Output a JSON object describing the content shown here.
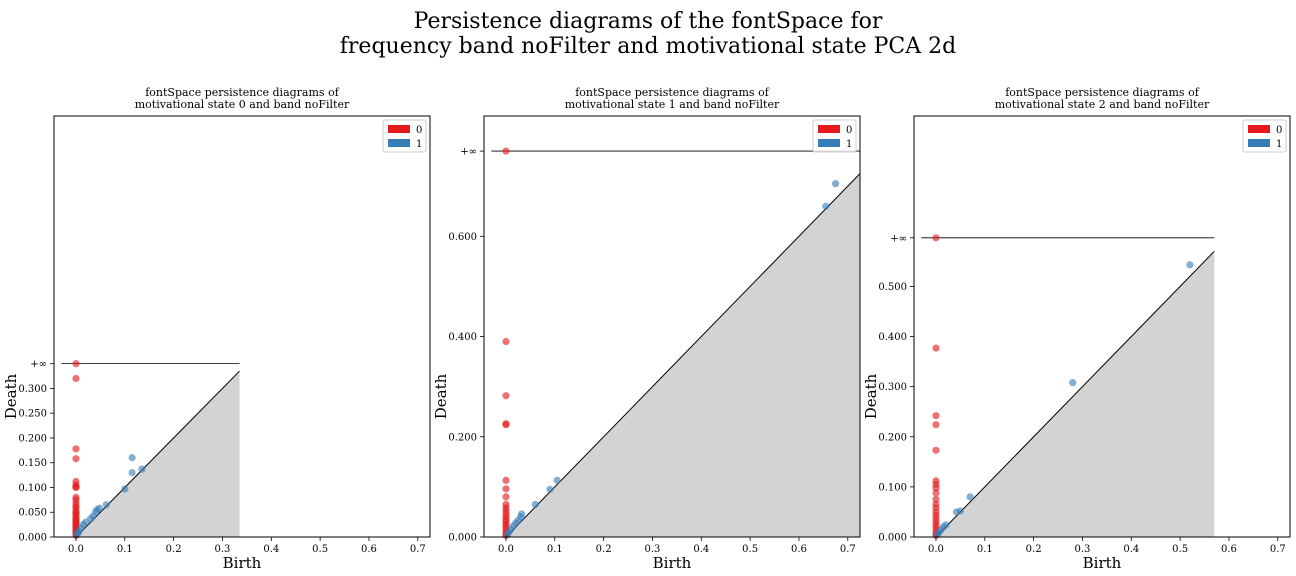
{
  "figure": {
    "title_line1": "Persistence diagrams of the fontSpace for",
    "title_line2": "frequency band noFilter and motivational state PCA 2d"
  },
  "chart_data": [
    {
      "type": "scatter",
      "title_line1": "fontSpace persistence diagrams of",
      "title_line2": "motivational state 0 and band noFilter",
      "xlabel": "Birth",
      "ylabel": "Death",
      "xlim": [
        -0.045,
        0.725
      ],
      "ylim": [
        0,
        0.85
      ],
      "xticks": [
        0.0,
        0.1,
        0.2,
        0.3,
        0.4,
        0.5,
        0.6,
        0.7
      ],
      "xtick_labels": [
        "0.0",
        "0.1",
        "0.2",
        "0.3",
        "0.4",
        "0.5",
        "0.6",
        "0.7"
      ],
      "yticks": [
        0.0,
        0.05,
        0.1,
        0.15,
        0.2,
        0.25,
        0.3
      ],
      "ytick_labels": [
        "0.000",
        "0.050",
        "0.100",
        "0.150",
        "0.200",
        "0.250",
        "0.300"
      ],
      "inf_value": 0.35,
      "inf_label": "+∞",
      "diag_max": 0.335,
      "legend": {
        "position": "top-right",
        "entries": [
          "0",
          "1"
        ]
      },
      "series": [
        {
          "name": "0",
          "color": "#e41a1c",
          "points": [
            [
              0,
              0.35
            ],
            [
              0,
              0.32
            ],
            [
              0,
              0.178
            ],
            [
              0,
              0.158
            ],
            [
              0,
              0.112
            ],
            [
              0,
              0.105
            ],
            [
              0,
              0.101
            ],
            [
              0,
              0.1
            ],
            [
              0,
              0.08
            ],
            [
              0,
              0.075
            ],
            [
              0,
              0.068
            ],
            [
              0,
              0.062
            ],
            [
              0,
              0.058
            ],
            [
              0,
              0.052
            ],
            [
              0,
              0.048
            ],
            [
              0,
              0.045
            ],
            [
              0,
              0.04
            ],
            [
              0,
              0.036
            ],
            [
              0,
              0.033
            ],
            [
              0,
              0.03
            ],
            [
              0,
              0.027
            ],
            [
              0,
              0.024
            ],
            [
              0,
              0.021
            ],
            [
              0,
              0.018
            ],
            [
              0,
              0.015
            ],
            [
              0,
              0.012
            ],
            [
              0,
              0.009
            ],
            [
              0,
              0.006
            ],
            [
              0,
              0.003
            ]
          ]
        },
        {
          "name": "1",
          "color": "#377eb8",
          "points": [
            [
              0.115,
              0.16
            ],
            [
              0.115,
              0.13
            ],
            [
              0.135,
              0.137
            ],
            [
              0.1,
              0.097
            ],
            [
              0.062,
              0.065
            ],
            [
              0.048,
              0.058
            ],
            [
              0.043,
              0.055
            ],
            [
              0.04,
              0.05
            ],
            [
              0.035,
              0.042
            ],
            [
              0.03,
              0.037
            ],
            [
              0.02,
              0.03
            ],
            [
              0.015,
              0.025
            ],
            [
              0.01,
              0.018
            ],
            [
              0.006,
              0.012
            ],
            [
              0.004,
              0.008
            ],
            [
              0.002,
              0.005
            ]
          ]
        }
      ]
    },
    {
      "type": "scatter",
      "title_line1": "fontSpace persistence diagrams of",
      "title_line2": "motivational state 1 and band noFilter",
      "xlabel": "Birth",
      "ylabel": "Death",
      "xlim": [
        -0.045,
        0.725
      ],
      "ylim": [
        0,
        0.84
      ],
      "xticks": [
        0.0,
        0.1,
        0.2,
        0.3,
        0.4,
        0.5,
        0.6,
        0.7
      ],
      "xtick_labels": [
        "0.0",
        "0.1",
        "0.2",
        "0.3",
        "0.4",
        "0.5",
        "0.6",
        "0.7"
      ],
      "yticks": [
        0.0,
        0.2,
        0.4,
        0.6
      ],
      "ytick_labels": [
        "0.000",
        "0.200",
        "0.400",
        "0.600"
      ],
      "inf_value": 0.77,
      "inf_label": "+∞",
      "diag_max": 0.725,
      "legend": {
        "position": "top-right",
        "entries": [
          "0",
          "1"
        ]
      },
      "series": [
        {
          "name": "0",
          "color": "#e41a1c",
          "points": [
            [
              0,
              0.77
            ],
            [
              0,
              0.39
            ],
            [
              0,
              0.282
            ],
            [
              0,
              0.226
            ],
            [
              0,
              0.224
            ],
            [
              0,
              0.113
            ],
            [
              0,
              0.096
            ],
            [
              0,
              0.08
            ],
            [
              0,
              0.065
            ],
            [
              0,
              0.058
            ],
            [
              0,
              0.052
            ],
            [
              0,
              0.046
            ],
            [
              0,
              0.04
            ],
            [
              0,
              0.035
            ],
            [
              0,
              0.03
            ],
            [
              0,
              0.025
            ],
            [
              0,
              0.02
            ],
            [
              0,
              0.015
            ],
            [
              0,
              0.01
            ],
            [
              0,
              0.006
            ],
            [
              0,
              0.003
            ]
          ]
        },
        {
          "name": "1",
          "color": "#377eb8",
          "points": [
            [
              0.675,
              0.705
            ],
            [
              0.655,
              0.66
            ],
            [
              0.105,
              0.113
            ],
            [
              0.09,
              0.095
            ],
            [
              0.06,
              0.065
            ],
            [
              0.032,
              0.046
            ],
            [
              0.03,
              0.04
            ],
            [
              0.025,
              0.033
            ],
            [
              0.02,
              0.028
            ],
            [
              0.015,
              0.022
            ],
            [
              0.01,
              0.015
            ],
            [
              0.006,
              0.01
            ],
            [
              0.003,
              0.005
            ]
          ]
        }
      ]
    },
    {
      "type": "scatter",
      "title_line1": "fontSpace persistence diagrams of",
      "title_line2": "motivational state 2 and band noFilter",
      "xlabel": "Birth",
      "ylabel": "Death",
      "xlim": [
        -0.045,
        0.725
      ],
      "ylim": [
        0,
        0.84
      ],
      "xticks": [
        0.0,
        0.1,
        0.2,
        0.3,
        0.4,
        0.5,
        0.6,
        0.7
      ],
      "xtick_labels": [
        "0.0",
        "0.1",
        "0.2",
        "0.3",
        "0.4",
        "0.5",
        "0.6",
        "0.7"
      ],
      "yticks": [
        0.0,
        0.1,
        0.2,
        0.3,
        0.4,
        0.5
      ],
      "ytick_labels": [
        "0.000",
        "0.100",
        "0.200",
        "0.300",
        "0.400",
        "0.500"
      ],
      "inf_value": 0.597,
      "inf_label": "+∞",
      "diag_max": 0.57,
      "legend": {
        "position": "top-right",
        "entries": [
          "0",
          "1"
        ]
      },
      "series": [
        {
          "name": "0",
          "color": "#e41a1c",
          "points": [
            [
              0,
              0.597
            ],
            [
              0,
              0.377
            ],
            [
              0,
              0.242
            ],
            [
              0,
              0.224
            ],
            [
              0,
              0.173
            ],
            [
              0,
              0.112
            ],
            [
              0,
              0.105
            ],
            [
              0,
              0.098
            ],
            [
              0,
              0.088
            ],
            [
              0,
              0.075
            ],
            [
              0,
              0.065
            ],
            [
              0,
              0.058
            ],
            [
              0,
              0.05
            ],
            [
              0,
              0.043
            ],
            [
              0,
              0.037
            ],
            [
              0,
              0.03
            ],
            [
              0,
              0.024
            ],
            [
              0,
              0.018
            ],
            [
              0,
              0.012
            ],
            [
              0,
              0.007
            ],
            [
              0,
              0.003
            ]
          ]
        },
        {
          "name": "1",
          "color": "#377eb8",
          "points": [
            [
              0.52,
              0.543
            ],
            [
              0.28,
              0.308
            ],
            [
              0.07,
              0.08
            ],
            [
              0.05,
              0.052
            ],
            [
              0.042,
              0.05
            ],
            [
              0.02,
              0.024
            ],
            [
              0.015,
              0.02
            ],
            [
              0.01,
              0.014
            ],
            [
              0.006,
              0.009
            ],
            [
              0.003,
              0.005
            ]
          ]
        }
      ]
    }
  ]
}
